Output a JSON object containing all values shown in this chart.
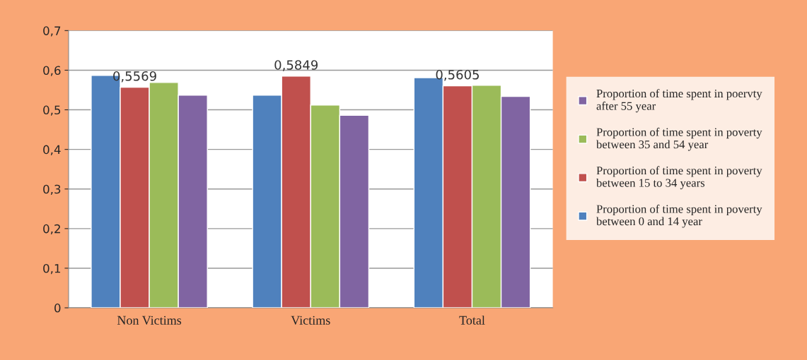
{
  "chart_data": {
    "type": "bar",
    "categories": [
      "Non Victims",
      "Victims",
      "Total"
    ],
    "series": [
      {
        "name": "Proportion of time spent in poverty between 0 and 14 year",
        "color": "#4f81bd",
        "values": [
          0.587,
          0.537,
          0.581
        ]
      },
      {
        "name": "Proportion of time spent in poverty between 15 to 34 years",
        "color": "#c0504d",
        "values": [
          0.5569,
          0.5849,
          0.5605
        ],
        "value_labels": [
          "0,5569",
          "0,5849",
          "0,5605"
        ]
      },
      {
        "name": "Proportion of time spent in poverty between 35 and 54 year",
        "color": "#9bbb59",
        "values": [
          0.569,
          0.512,
          0.562
        ]
      },
      {
        "name": "Proportion of time spent in poervty after 55 year",
        "color": "#8064a2",
        "values": [
          0.537,
          0.486,
          0.534
        ]
      }
    ],
    "ylim": [
      0,
      0.7
    ],
    "yticks": [
      0,
      {
        "value": 0.1,
        "label": "0,1"
      },
      {
        "value": 0.2,
        "label": "0,2"
      },
      {
        "value": 0.3,
        "label": "0,3"
      },
      {
        "value": 0.4,
        "label": "0,4"
      },
      {
        "value": 0.5,
        "label": "0,5"
      },
      {
        "value": 0.6,
        "label": "0,6"
      },
      {
        "value": 0.7,
        "label": "0,7"
      }
    ],
    "grid": "y",
    "legend": "right"
  }
}
